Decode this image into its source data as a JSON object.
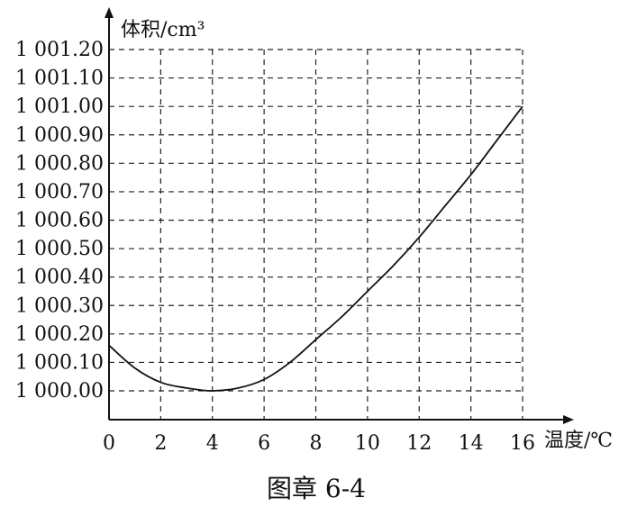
{
  "caption": "图章 6-4",
  "chart_data": {
    "type": "line",
    "title": "",
    "xlabel": "温度/℃",
    "ylabel": "体积/cm³",
    "xlim": [
      0,
      16
    ],
    "ylim": [
      1000.0,
      1001.2
    ],
    "x_ticks": [
      0,
      2,
      4,
      6,
      8,
      10,
      12,
      14,
      16
    ],
    "x_tick_labels": [
      "0",
      "2",
      "4",
      "6",
      "8",
      "10",
      "12",
      "14",
      "16"
    ],
    "y_ticks": [
      1000.0,
      1000.1,
      1000.2,
      1000.3,
      1000.4,
      1000.5,
      1000.6,
      1000.7,
      1000.8,
      1000.9,
      1001.0,
      1001.1,
      1001.2
    ],
    "y_tick_labels": [
      "1 000.00",
      "1 000.10",
      "1 000.20",
      "1 000.30",
      "1 000.40",
      "1 000.50",
      "1 000.60",
      "1 000.70",
      "1 000.80",
      "1 000.90",
      "1 001.00",
      "1 001.10",
      "1 001.20"
    ],
    "grid": true,
    "series": [
      {
        "x": [
          0,
          1,
          2,
          3,
          4,
          5,
          6,
          7,
          8,
          9,
          10,
          11,
          12,
          13,
          14,
          15,
          16
        ],
        "values": [
          1000.16,
          1000.08,
          1000.03,
          1000.01,
          1000.0,
          1000.01,
          1000.04,
          1000.1,
          1000.18,
          1000.26,
          1000.35,
          1000.44,
          1000.54,
          1000.65,
          1000.76,
          1000.88,
          1001.0
        ]
      }
    ]
  }
}
